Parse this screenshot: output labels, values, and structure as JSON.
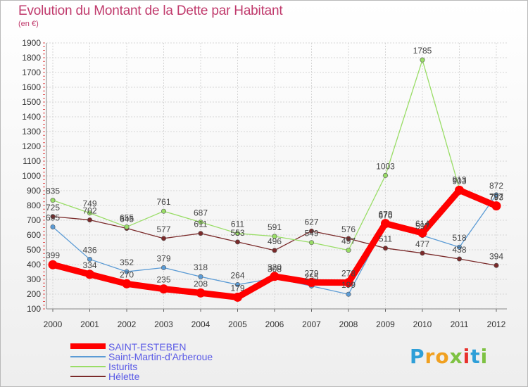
{
  "header": {
    "title": "Evolution du Montant de la Dette par Habitant",
    "subtitle": "(en €)"
  },
  "chart_data": {
    "type": "line",
    "title": "Evolution du Montant de la Dette par Habitant",
    "ylabel": "(en €)",
    "xlabel": "",
    "categories": [
      "2000",
      "2001",
      "2002",
      "2003",
      "2004",
      "2005",
      "2006",
      "2007",
      "2008",
      "2009",
      "2010",
      "2011",
      "2012"
    ],
    "ylim": [
      100,
      1900
    ],
    "yticks": [
      100,
      200,
      300,
      400,
      500,
      600,
      700,
      800,
      900,
      1000,
      1100,
      1200,
      1300,
      1400,
      1500,
      1600,
      1700,
      1800,
      1900
    ],
    "grid": true,
    "legend_position": "bottom-left",
    "series": [
      {
        "name": "SAINT-ESTEBEN",
        "color": "#ff0000",
        "width": "thick",
        "values": [
          399,
          334,
          270,
          235,
          208,
          179,
          320,
          279,
          278,
          678,
          614,
          903,
          797
        ]
      },
      {
        "name": "Saint-Martin-d'Arberoue",
        "color": "#5b9bd5",
        "width": "thin",
        "values": [
          655,
          436,
          352,
          379,
          318,
          264,
          308,
          255,
          199,
          670,
          597,
          518,
          872
        ]
      },
      {
        "name": "Isturits",
        "color": "#99dd66",
        "width": "thin",
        "values": [
          835,
          749,
          655,
          761,
          687,
          611,
          591,
          549,
          497,
          1003,
          1785,
          913,
          793
        ]
      },
      {
        "name": "Hélette",
        "color": "#7a2a2a",
        "width": "thin",
        "values": [
          725,
          702,
          645,
          577,
          611,
          553,
          496,
          627,
          576,
          511,
          477,
          438,
          394
        ]
      }
    ]
  },
  "branding": {
    "logo_letters": [
      "P",
      "r",
      "o",
      "x",
      "i",
      "t",
      "i"
    ],
    "logo_colors": [
      "#2e9fd8",
      "#f0a020",
      "#f0a020",
      "#7ec242",
      "#e8312c",
      "#2e9fd8",
      "#7ec242"
    ]
  }
}
